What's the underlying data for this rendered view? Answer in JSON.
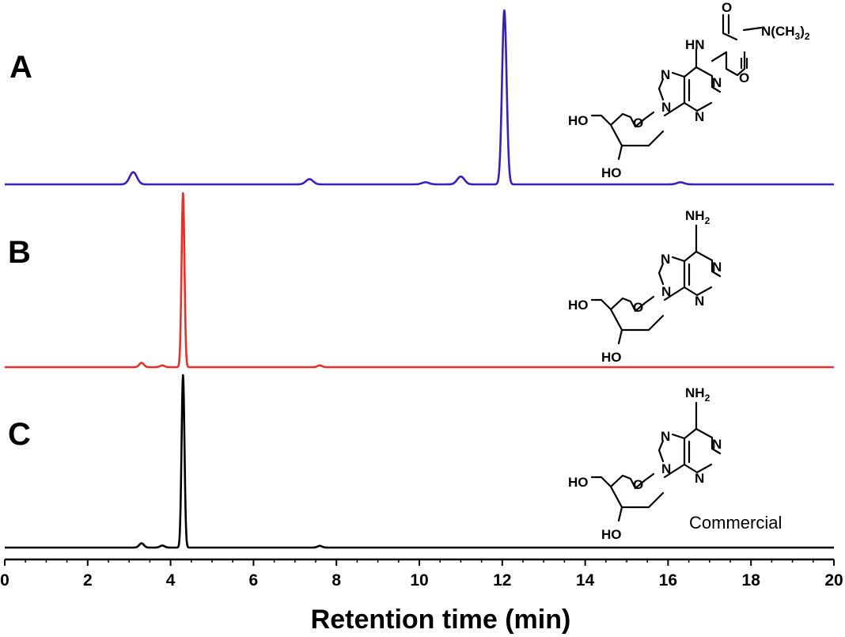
{
  "chart_data": {
    "type": "line",
    "xlabel": "Retention time (min)",
    "ylabel": "",
    "xlim": [
      0,
      20
    ],
    "xticks": [
      "0",
      "2",
      "4",
      "6",
      "8",
      "10",
      "12",
      "14",
      "16",
      "18",
      "20"
    ],
    "grid": false,
    "series": [
      {
        "name": "A",
        "color": "#3b1fb8",
        "peaks": [
          [
            3.1,
            0.07
          ],
          [
            7.35,
            0.03
          ],
          [
            10.15,
            0.012
          ],
          [
            11.0,
            0.045
          ],
          [
            12.05,
            1.0
          ],
          [
            16.3,
            0.012
          ]
        ]
      },
      {
        "name": "B",
        "color": "#e8302a",
        "peaks": [
          [
            3.3,
            0.025
          ],
          [
            3.8,
            0.01
          ],
          [
            4.3,
            1.0
          ],
          [
            7.6,
            0.01
          ]
        ]
      },
      {
        "name": "C",
        "color": "#000000",
        "peaks": [
          [
            3.3,
            0.025
          ],
          [
            3.8,
            0.012
          ],
          [
            4.3,
            1.0
          ],
          [
            7.6,
            0.01
          ]
        ]
      }
    ],
    "structures": [
      {
        "panel": "A",
        "labels": [
          "O",
          "O",
          "HN",
          "N(CH",
          "3",
          ")",
          "2",
          "N",
          "N",
          "N",
          "N",
          "O",
          "HO",
          "HO"
        ]
      },
      {
        "panel": "B",
        "labels": [
          "NH",
          "2",
          "N",
          "N",
          "N",
          "N",
          "O",
          "HO",
          "HO"
        ]
      },
      {
        "panel": "C",
        "labels": [
          "NH",
          "2",
          "N",
          "N",
          "N",
          "N",
          "O",
          "HO",
          "HO"
        ]
      }
    ],
    "annotations": [
      "Commercial"
    ]
  }
}
